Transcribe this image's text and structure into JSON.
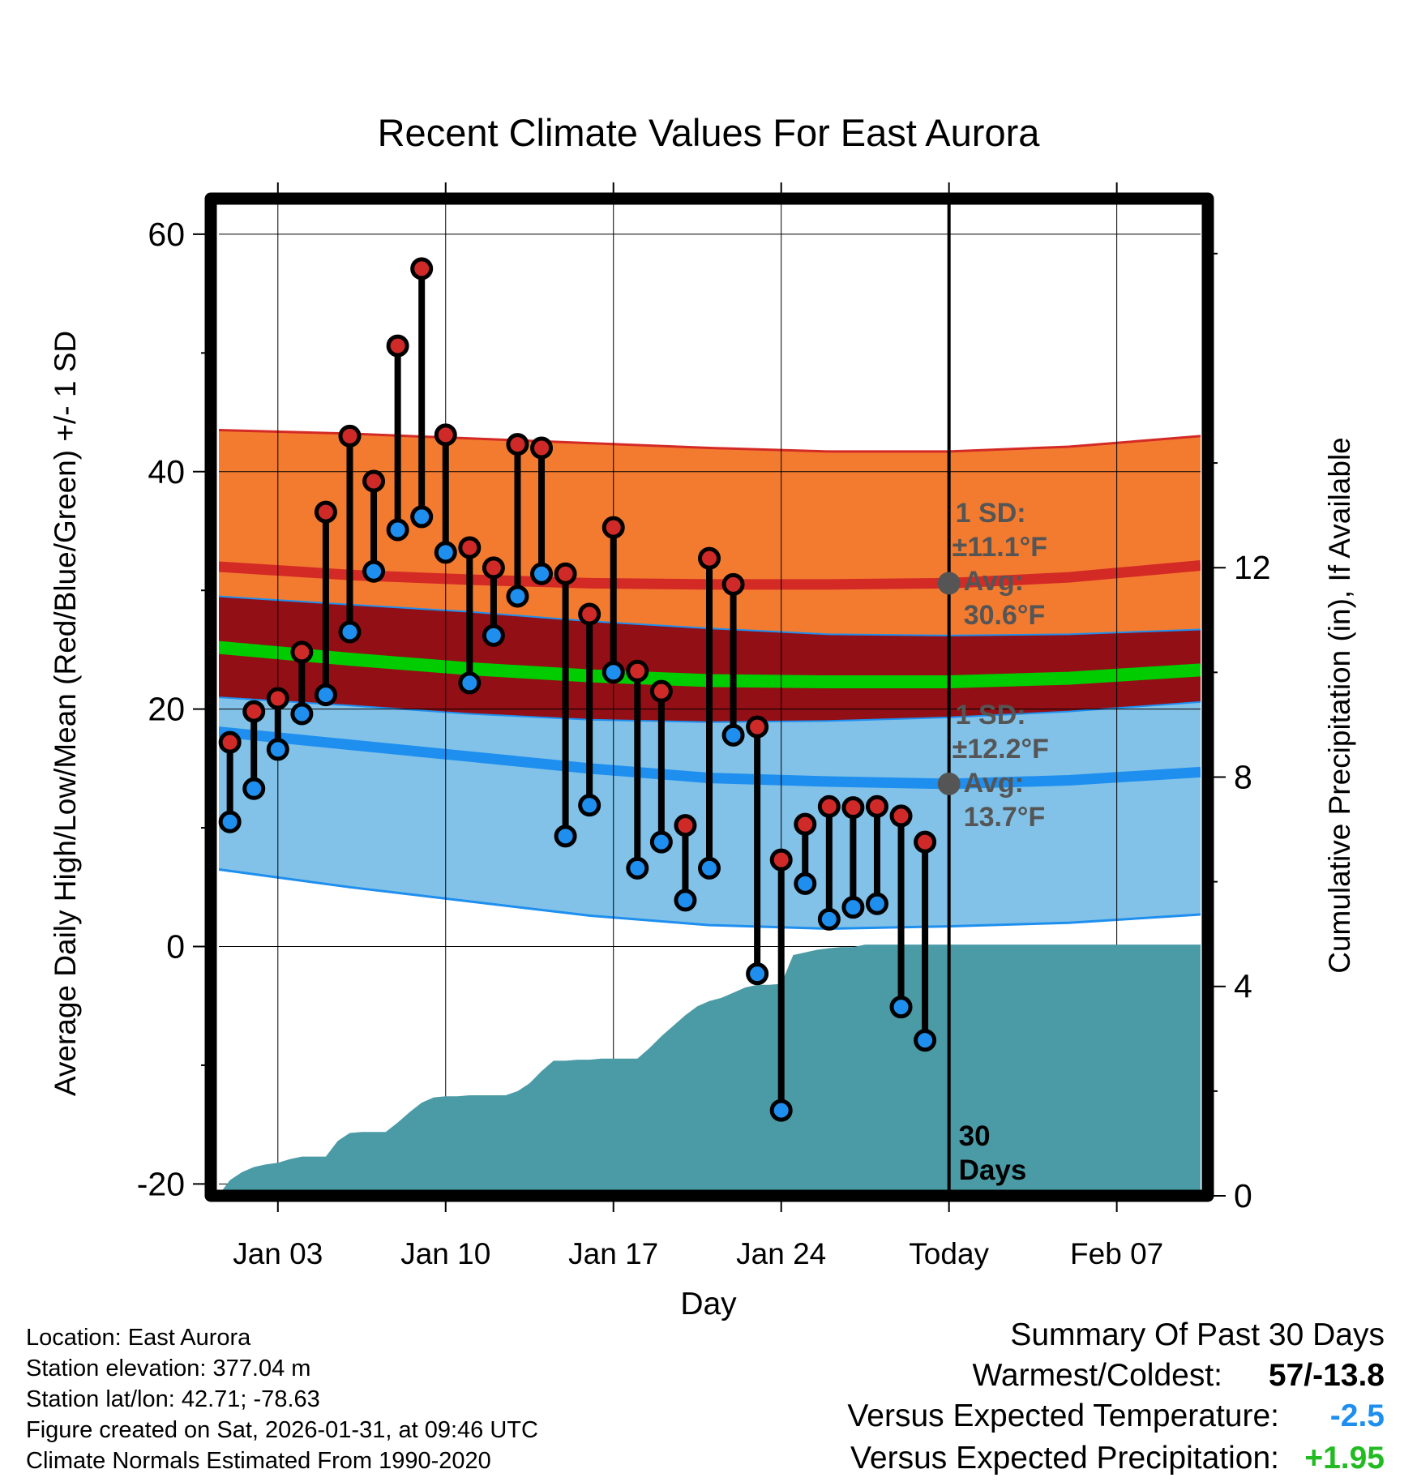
{
  "chart_data": {
    "type": "climate-range",
    "title": "Recent Climate Values For East Aurora",
    "xlabel": "Day",
    "ylabel_left": "Average Daily High/Low/Mean (Red/Blue/Green) +/- 1 SD",
    "ylabel_right": "Cumulative Precipitation (in), If Available",
    "x_range_days": [
      -30.8,
      10.8
    ],
    "ylim_left": [
      -21,
      63
    ],
    "ylim_right": [
      0,
      19.05
    ],
    "left_ticks": [
      "-20",
      "0",
      "20",
      "40",
      "60"
    ],
    "right_ticks": [
      "0",
      "4",
      "8",
      "12"
    ],
    "x_ticks": [
      {
        "day": -28,
        "label": "Jan 03"
      },
      {
        "day": -21,
        "label": "Jan 10"
      },
      {
        "day": -14,
        "label": "Jan 17"
      },
      {
        "day": -7,
        "label": "Jan 24"
      },
      {
        "day": 0,
        "label": "Today"
      },
      {
        "day": 7,
        "label": "Feb 07"
      }
    ],
    "normals": {
      "days": [
        -30.5,
        -25,
        -20,
        -15,
        -10,
        -5,
        0,
        5,
        10.5
      ],
      "high_avg": [
        32.0,
        31.3,
        30.9,
        30.6,
        30.5,
        30.5,
        30.6,
        31.1,
        32.1
      ],
      "high_plus_sd": [
        43.5,
        43.2,
        42.8,
        42.4,
        42.0,
        41.7,
        41.7,
        42.1,
        43.0
      ],
      "high_minus_sd": [
        29.5,
        28.8,
        28.2,
        27.4,
        26.8,
        26.3,
        26.2,
        26.3,
        26.7
      ],
      "mean_avg": [
        25.2,
        24.2,
        23.4,
        22.8,
        22.4,
        22.3,
        22.3,
        22.6,
        23.3
      ],
      "low_avg": [
        18.1,
        17.0,
        16.0,
        15.0,
        14.2,
        13.9,
        13.7,
        14.0,
        14.7
      ],
      "low_plus_sd": [
        21.0,
        20.3,
        19.6,
        19.1,
        18.9,
        19.0,
        19.3,
        19.8,
        20.6
      ],
      "low_minus_sd": [
        6.5,
        5.0,
        3.8,
        2.6,
        1.8,
        1.5,
        1.7,
        2.0,
        2.7
      ]
    },
    "days": [
      -30,
      -29,
      -28,
      -27,
      -26,
      -25,
      -24,
      -23,
      -22,
      -21,
      -20,
      -19,
      -18,
      -17,
      -16,
      -15,
      -14,
      -13,
      -12,
      -11,
      -10,
      -9,
      -8,
      -7,
      -6,
      -5,
      -4,
      -3,
      -2,
      -1
    ],
    "highs": [
      17.2,
      19.8,
      20.9,
      24.8,
      36.6,
      43.0,
      39.2,
      50.6,
      57.1,
      43.1,
      33.6,
      31.9,
      42.3,
      42.0,
      31.4,
      28.0,
      35.3,
      23.2,
      21.5,
      10.2,
      32.7,
      30.5,
      18.5,
      7.3,
      10.3,
      11.8,
      11.7,
      11.8,
      11.0,
      8.8
    ],
    "lows": [
      10.5,
      13.3,
      16.6,
      19.6,
      21.2,
      26.5,
      31.6,
      35.1,
      36.2,
      33.2,
      22.2,
      26.2,
      29.5,
      31.4,
      9.3,
      11.9,
      23.1,
      6.6,
      8.8,
      3.9,
      6.6,
      17.8,
      -2.3,
      -13.8,
      5.3,
      2.3,
      3.3,
      3.6,
      -5.1,
      -7.9
    ],
    "precip_days": [
      -30.5,
      -30,
      -29.5,
      -29,
      -28.5,
      -28,
      -27.5,
      -27,
      -26.5,
      -26,
      -25.5,
      -25,
      -24.5,
      -24,
      -23.5,
      -23,
      -22.5,
      -22,
      -21.5,
      -21,
      -20.5,
      -20,
      -19.5,
      -19,
      -18.5,
      -18,
      -17.5,
      -17,
      -16.5,
      -16,
      -15.5,
      -15,
      -14.5,
      -14,
      -13.5,
      -13,
      -12.5,
      -12,
      -11.5,
      -11,
      -10.5,
      -10,
      -9.5,
      -9,
      -8.5,
      -8,
      -7.5,
      -7,
      -6.5,
      -6,
      -5.5,
      -5,
      -4.5,
      -4,
      -3.5,
      -3,
      -2.5,
      -2,
      -1.5,
      -1,
      -0.5,
      0,
      10.5
    ],
    "precip": [
      0.0,
      0.3,
      0.45,
      0.55,
      0.6,
      0.63,
      0.7,
      0.75,
      0.75,
      0.75,
      1.05,
      1.2,
      1.22,
      1.22,
      1.22,
      1.4,
      1.6,
      1.78,
      1.88,
      1.9,
      1.9,
      1.92,
      1.92,
      1.92,
      1.92,
      2.0,
      2.15,
      2.38,
      2.58,
      2.58,
      2.6,
      2.6,
      2.62,
      2.62,
      2.62,
      2.62,
      2.82,
      3.05,
      3.25,
      3.45,
      3.62,
      3.72,
      3.78,
      3.88,
      3.98,
      4.03,
      4.03,
      4.05,
      4.6,
      4.65,
      4.7,
      4.73,
      4.75,
      4.75,
      4.8,
      4.8,
      4.8,
      4.8,
      4.8,
      4.8,
      4.8,
      4.8,
      4.8
    ],
    "annotation_high": {
      "sd_label": "1 SD:",
      "sd_value": "±11.1°F",
      "avg_label": "Avg:",
      "avg_value": "30.6°F",
      "avg": 30.6
    },
    "annotation_low": {
      "sd_label": "1 SD:",
      "sd_value": "±12.2°F",
      "avg_label": "Avg:",
      "avg_value": "13.7°F",
      "avg": 13.7
    },
    "days_label_1": "30",
    "days_label_2": "Days"
  },
  "info": {
    "location": "Location: East Aurora",
    "elevation": "Station elevation: 377.04 m",
    "latlon": "Station lat/lon: 42.71; -78.63",
    "created": "Figure created on Sat, 2026-01-31, at 09:46 UTC",
    "normals": "Climate Normals Estimated From 1990-2020"
  },
  "summary": {
    "title": "Summary Of Past 30 Days",
    "warm_cold_label": "Warmest/Coldest:",
    "warm_cold_value": "57/-13.8",
    "temp_label": "Versus Expected Temperature:",
    "temp_value": "-2.5",
    "precip_label": "Versus Expected Precipitation:",
    "precip_value": "+1.95"
  },
  "colors": {
    "high_band": "#f37b30",
    "high_line": "#d42a25",
    "mid_band": "#920f16",
    "mean_line": "#00cc00",
    "low_band": "#82c2e8",
    "low_line": "#1e8fef",
    "precip": "#4a9ba6",
    "high_dot": "#cf2a27",
    "low_dot": "#1e8fef",
    "annotation": "#555555",
    "temp_value": "#1e8fef",
    "precip_value": "#22bb22"
  }
}
